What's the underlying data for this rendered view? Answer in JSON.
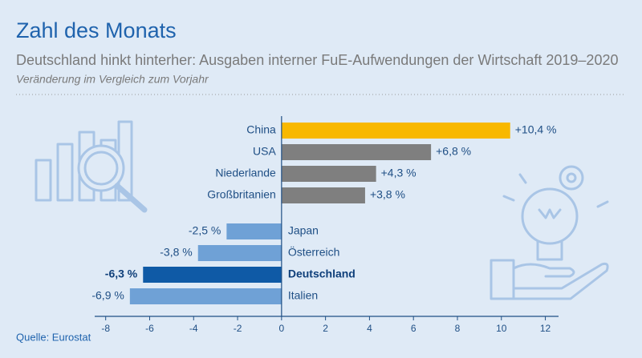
{
  "chart_data": {
    "type": "bar",
    "orientation": "horizontal",
    "title": "Zahl des Monats",
    "subtitle": "Deutschland hinkt hinterher: Ausgaben interner FuE-Aufwendungen der Wirtschaft 2019–2020",
    "note": "Veränderung im Vergleich zum Vorjahr",
    "source": "Quelle: Eurostat",
    "categories": [
      "China",
      "USA",
      "Niederlande",
      "Großbritanien",
      "Japan",
      "Österreich",
      "Deutschland",
      "Italien"
    ],
    "values": [
      10.4,
      6.8,
      4.3,
      3.8,
      -2.5,
      -3.8,
      -6.3,
      -6.9
    ],
    "value_labels": [
      "+10,4 %",
      "+6,8 %",
      "+4,3 %",
      "+3,8 %",
      "-2,5 %",
      "-3,8 %",
      "-6,3 %",
      "-6,9 %"
    ],
    "colors": [
      "#f8b800",
      "#7f7f7f",
      "#7f7f7f",
      "#7f7f7f",
      "#6fa1d6",
      "#6fa1d6",
      "#0f5aa6",
      "#6fa1d6"
    ],
    "highlight": "Deutschland",
    "xlim": [
      -8.5,
      12.6
    ],
    "xticks": [
      -8,
      -6,
      -4,
      -2,
      0,
      2,
      4,
      6,
      8,
      10,
      12
    ]
  }
}
